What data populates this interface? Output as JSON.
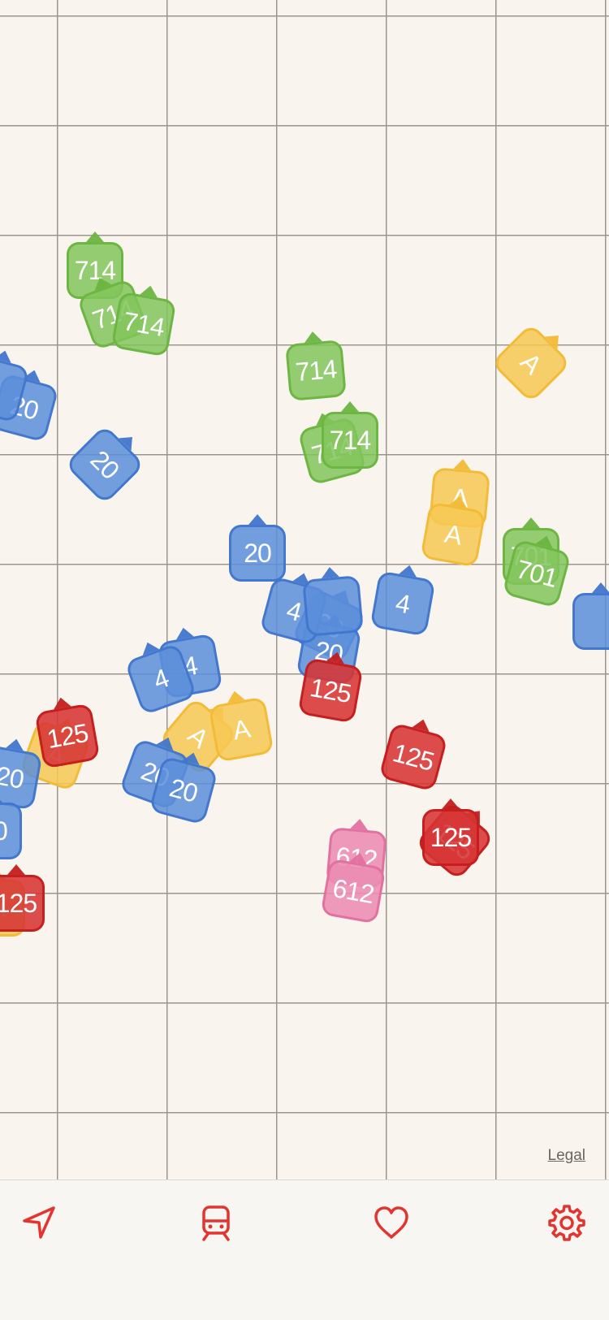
{
  "map": {
    "legal_label": "Legal",
    "colors": {
      "blue": "#5c8eda",
      "green": "#83c45c",
      "yellow": "#f7c852",
      "red": "#d63434",
      "pink": "#ec8cb2",
      "grid": "#9a968f",
      "background": "#f9f5ee"
    },
    "markers": [
      {
        "label": "714",
        "color": "green"
      },
      {
        "label": "714",
        "color": "green"
      },
      {
        "label": "714",
        "color": "green"
      },
      {
        "label": "714",
        "color": "green"
      },
      {
        "label": "714",
        "color": "green"
      },
      {
        "label": "714",
        "color": "green"
      },
      {
        "label": "701",
        "color": "green"
      },
      {
        "label": "701",
        "color": "green"
      },
      {
        "label": "A",
        "color": "yellow"
      },
      {
        "label": "A",
        "color": "yellow"
      },
      {
        "label": "A",
        "color": "yellow"
      },
      {
        "label": "A",
        "color": "yellow"
      },
      {
        "label": "A",
        "color": "yellow"
      },
      {
        "label": "A",
        "color": "yellow"
      },
      {
        "label": "A",
        "color": "yellow"
      },
      {
        "label": "20",
        "color": "blue"
      },
      {
        "label": "20",
        "color": "blue"
      },
      {
        "label": "20",
        "color": "blue"
      },
      {
        "label": "20",
        "color": "blue"
      },
      {
        "label": "20",
        "color": "blue"
      },
      {
        "label": "20",
        "color": "blue"
      },
      {
        "label": "20",
        "color": "blue"
      },
      {
        "label": "20",
        "color": "blue"
      },
      {
        "label": "20",
        "color": "blue"
      },
      {
        "label": "4",
        "color": "blue"
      },
      {
        "label": "4",
        "color": "blue"
      },
      {
        "label": "4",
        "color": "blue"
      },
      {
        "label": "4",
        "color": "blue"
      },
      {
        "label": "",
        "color": "blue"
      },
      {
        "label": "",
        "color": "blue"
      },
      {
        "label": "",
        "color": "blue"
      },
      {
        "label": "125",
        "color": "red"
      },
      {
        "label": "125",
        "color": "red"
      },
      {
        "label": "125",
        "color": "red"
      },
      {
        "label": "125",
        "color": "red"
      },
      {
        "label": "125",
        "color": "red"
      },
      {
        "label": "125",
        "color": "red"
      },
      {
        "label": "612",
        "color": "pink"
      },
      {
        "label": "612",
        "color": "pink"
      }
    ]
  },
  "tabbar": {
    "accent_color": "#e3342f",
    "tabs": [
      {
        "name": "nearby",
        "icon": "location-arrow-icon"
      },
      {
        "name": "lines",
        "icon": "train-icon"
      },
      {
        "name": "favorites",
        "icon": "heart-icon"
      },
      {
        "name": "settings",
        "icon": "gear-icon"
      }
    ]
  }
}
